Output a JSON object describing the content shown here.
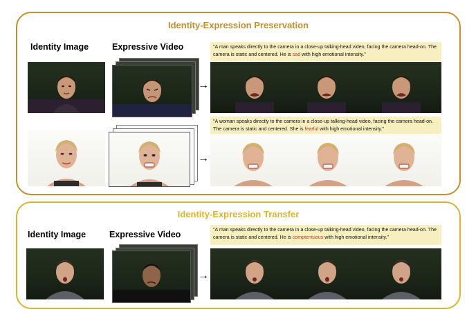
{
  "panel1": {
    "title": "Identity-Expression Preservation",
    "identity_header": "Identity Image",
    "video_header": "Expressive Video",
    "caption1": {
      "prefix": "\"A man speaks directly to the camera in a close-up talking-head video, facing the camera head-on. The camera is static and centered. He is ",
      "emotion": "sad",
      "suffix": " with high emotional intensity.\""
    },
    "caption2": {
      "prefix": "\"A woman speaks directly to the camera in a close-up talking-head video, facing the camera head-on. The camera is static and centered. She is ",
      "emotion": "fearful",
      "suffix": " with high emotional intensity.\""
    }
  },
  "panel2": {
    "title": "Identity-Expression Transfer",
    "identity_header": "Identity Image",
    "video_header": "Expressive Video",
    "caption": {
      "prefix": "\"A man speaks directly to the camera in a close-up talking-head video, facing the camera head-on. The camera is static and centered. He is ",
      "emotion": "comptentuous",
      "suffix": " with high emotional intensity.\""
    }
  },
  "colors": {
    "panel1_border": "#c48e2e",
    "panel2_border": "#d8b431",
    "caption_bg": "#f7efbf",
    "emotion_text": "#c0392b"
  },
  "icons": {
    "arrow": "→"
  }
}
